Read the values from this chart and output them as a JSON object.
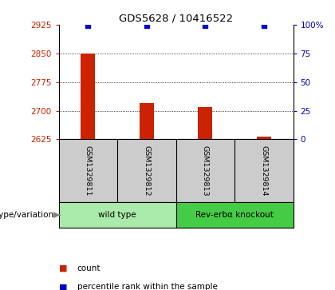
{
  "title": "GDS5628 / 10416522",
  "samples": [
    "GSM1329811",
    "GSM1329812",
    "GSM1329813",
    "GSM1329814"
  ],
  "counts": [
    2850,
    2720,
    2710,
    2632
  ],
  "percentiles": [
    99,
    99,
    99,
    99
  ],
  "y_min": 2625,
  "y_max": 2925,
  "y_ticks": [
    2625,
    2700,
    2775,
    2850,
    2925
  ],
  "y_right_ticks": [
    0,
    25,
    50,
    75,
    100
  ],
  "y_right_labels": [
    "0",
    "25",
    "50",
    "75",
    "100%"
  ],
  "bar_color": "#cc2200",
  "dot_color": "#0000cc",
  "left_tick_color": "#cc2200",
  "right_tick_color": "#0000cc",
  "groups": [
    {
      "label": "wild type",
      "samples": [
        0,
        1
      ],
      "color": "#aaeaaa"
    },
    {
      "label": "Rev-erbα knockout",
      "samples": [
        2,
        3
      ],
      "color": "#44cc44"
    }
  ],
  "group_row_label": "genotype/variation",
  "legend_count_label": "count",
  "legend_pct_label": "percentile rank within the sample",
  "bg_color": "#ffffff",
  "plot_bg": "#ffffff",
  "grid_color": "#000000",
  "sample_box_color": "#cccccc",
  "grid_lines": [
    2700,
    2775,
    2850
  ],
  "bar_width": 0.25
}
